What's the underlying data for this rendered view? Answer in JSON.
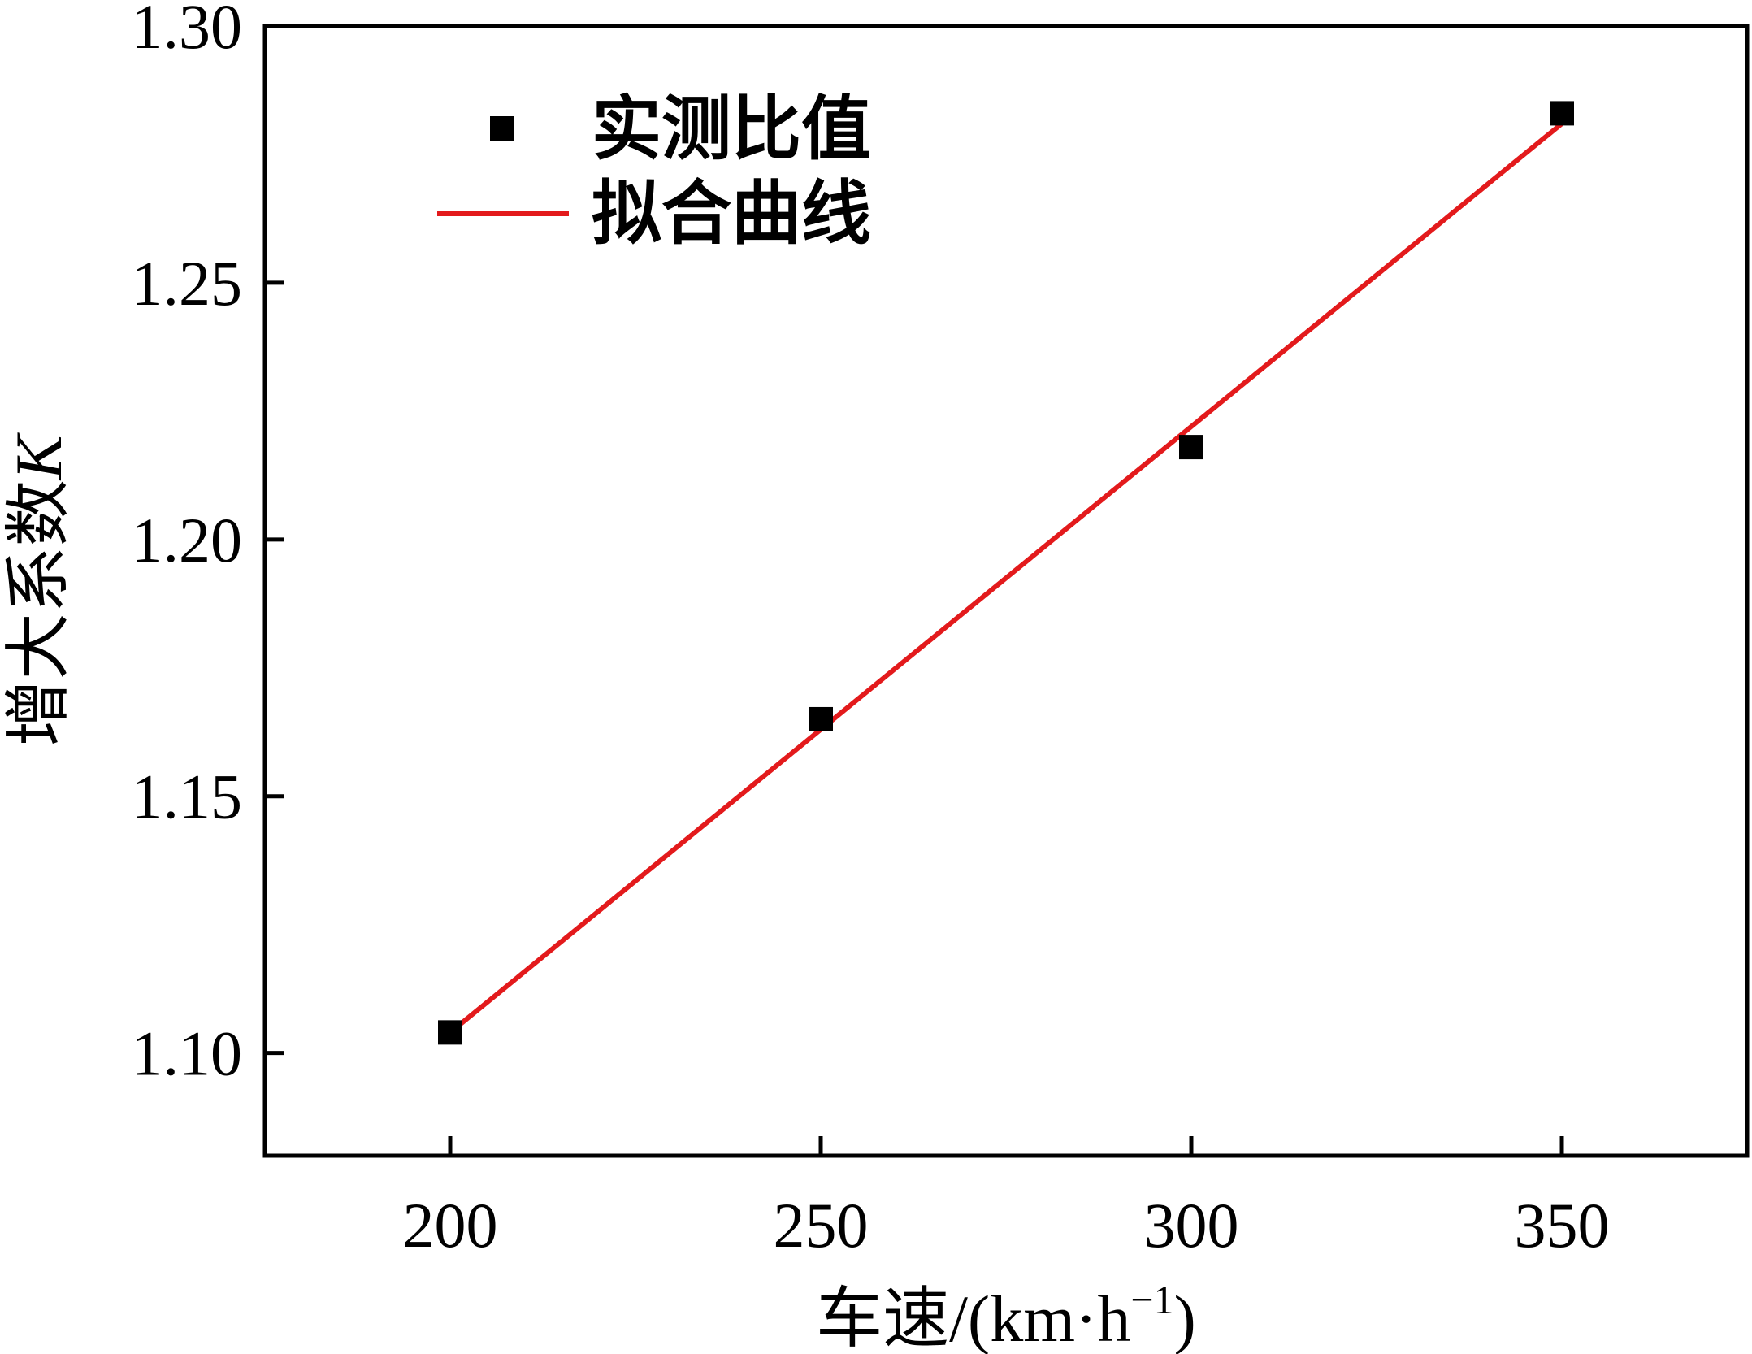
{
  "chart_data": {
    "type": "scatter",
    "title": "",
    "xlabel": "车速/(km·h",
    "xlabel_sup": "−1",
    "xlabel_close": ")",
    "ylabel": "增大系数",
    "ylabel_var": "K",
    "xlim": [
      175,
      375
    ],
    "ylim": [
      1.08,
      1.3
    ],
    "xticks": [
      200,
      250,
      300,
      350
    ],
    "xtick_labels": [
      "200",
      "250",
      "300",
      "350"
    ],
    "yticks": [
      1.1,
      1.15,
      1.2,
      1.25,
      1.3
    ],
    "ytick_labels": [
      "1.10",
      "1.15",
      "1.20",
      "1.25",
      "1.30"
    ],
    "grid": false,
    "legend_position": "top-left",
    "series": [
      {
        "name": "实测比值",
        "kind": "scatter",
        "marker": "square",
        "color": "#000000",
        "x": [
          200,
          250,
          300,
          350
        ],
        "y": [
          1.104,
          1.165,
          1.218,
          1.283
        ]
      },
      {
        "name": "拟合曲线",
        "kind": "line",
        "color": "#e31a1c",
        "x": [
          200,
          350
        ],
        "y": [
          1.104,
          1.281
        ]
      }
    ]
  }
}
